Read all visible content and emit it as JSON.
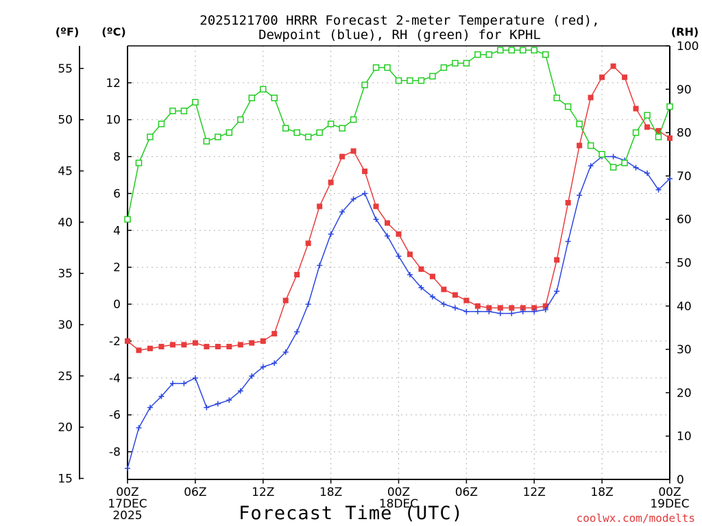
{
  "chart_data": {
    "type": "line",
    "title_line1": "2025121700 HRRR Forecast 2-meter Temperature (red),",
    "title_line2": "Dewpoint (blue), RH (green) for KPHL",
    "xlabel": "Forecast Time (UTC)",
    "credit": "coolwx.com/modelts",
    "units": {
      "fahrenheit": "(ºF)",
      "celsius": "(ºC)",
      "rh": "(RH)"
    },
    "x_range": [
      0,
      48
    ],
    "x_ticks": [
      {
        "x": 0,
        "lines": [
          "00Z",
          "17DEC",
          "2025"
        ]
      },
      {
        "x": 6,
        "lines": [
          "06Z"
        ]
      },
      {
        "x": 12,
        "lines": [
          "12Z"
        ]
      },
      {
        "x": 18,
        "lines": [
          "18Z"
        ]
      },
      {
        "x": 24,
        "lines": [
          "00Z",
          "18DEC"
        ]
      },
      {
        "x": 30,
        "lines": [
          "06Z"
        ]
      },
      {
        "x": 36,
        "lines": [
          "12Z"
        ]
      },
      {
        "x": 42,
        "lines": [
          "18Z"
        ]
      },
      {
        "x": 48,
        "lines": [
          "00Z",
          "19DEC"
        ]
      }
    ],
    "y_celsius": {
      "range": [
        -9.5,
        14
      ],
      "ticks": [
        -8,
        -6,
        -4,
        -2,
        0,
        2,
        4,
        6,
        8,
        10,
        12
      ]
    },
    "y_fahrenheit": {
      "ticks": [
        15,
        20,
        25,
        30,
        35,
        40,
        45,
        50,
        55
      ]
    },
    "y_rh": {
      "range": [
        0,
        100
      ],
      "ticks": [
        0,
        10,
        20,
        30,
        40,
        50,
        60,
        70,
        80,
        90,
        100
      ]
    },
    "grid": true,
    "x": [
      0,
      1,
      2,
      3,
      4,
      5,
      6,
      7,
      8,
      9,
      10,
      11,
      12,
      13,
      14,
      15,
      16,
      17,
      18,
      19,
      20,
      21,
      22,
      23,
      24,
      25,
      26,
      27,
      28,
      29,
      30,
      31,
      32,
      33,
      34,
      35,
      36,
      37,
      38,
      39,
      40,
      41,
      42,
      43,
      44,
      45,
      46,
      47,
      48
    ],
    "series": [
      {
        "key": "temperature",
        "units": "C",
        "color": "#e83c3c",
        "marker": "filled-square",
        "values": [
          -2.0,
          -2.5,
          -2.4,
          -2.3,
          -2.2,
          -2.2,
          -2.1,
          -2.3,
          -2.3,
          -2.3,
          -2.2,
          -2.1,
          -2.0,
          -1.6,
          0.2,
          1.6,
          3.3,
          5.3,
          6.6,
          8.0,
          8.3,
          7.2,
          5.3,
          4.4,
          3.8,
          2.7,
          1.9,
          1.5,
          0.8,
          0.5,
          0.2,
          -0.1,
          -0.2,
          -0.2,
          -0.2,
          -0.2,
          -0.2,
          -0.1,
          2.4,
          5.5,
          8.6,
          11.2,
          12.3,
          12.9,
          12.3,
          10.6,
          9.6,
          9.4,
          9.0
        ]
      },
      {
        "key": "dewpoint",
        "units": "C",
        "color": "#2a45e0",
        "marker": "plus",
        "values": [
          -8.9,
          -6.7,
          -5.6,
          -5.0,
          -4.3,
          -4.3,
          -4.0,
          -5.6,
          -5.4,
          -5.2,
          -4.7,
          -3.9,
          -3.4,
          -3.2,
          -2.6,
          -1.5,
          0.0,
          2.1,
          3.8,
          5.0,
          5.7,
          6.0,
          4.6,
          3.7,
          2.6,
          1.6,
          0.9,
          0.4,
          0.0,
          -0.2,
          -0.4,
          -0.4,
          -0.4,
          -0.5,
          -0.5,
          -0.4,
          -0.4,
          -0.3,
          0.7,
          3.4,
          5.9,
          7.5,
          8.0,
          8.0,
          7.8,
          7.4,
          7.1,
          6.2,
          6.8
        ]
      },
      {
        "key": "rh",
        "units": "%",
        "color": "#22cc22",
        "marker": "open-square",
        "values": [
          60,
          73,
          79,
          82,
          85,
          85,
          87,
          78,
          79,
          80,
          83,
          88,
          90,
          88,
          81,
          80,
          79,
          80,
          82,
          81,
          83,
          91,
          95,
          95,
          92,
          92,
          92,
          93,
          95,
          96,
          96,
          98,
          98,
          99,
          99,
          99,
          99,
          98,
          88,
          86,
          82,
          77,
          75,
          72,
          73,
          80,
          84,
          79,
          86
        ]
      }
    ]
  }
}
